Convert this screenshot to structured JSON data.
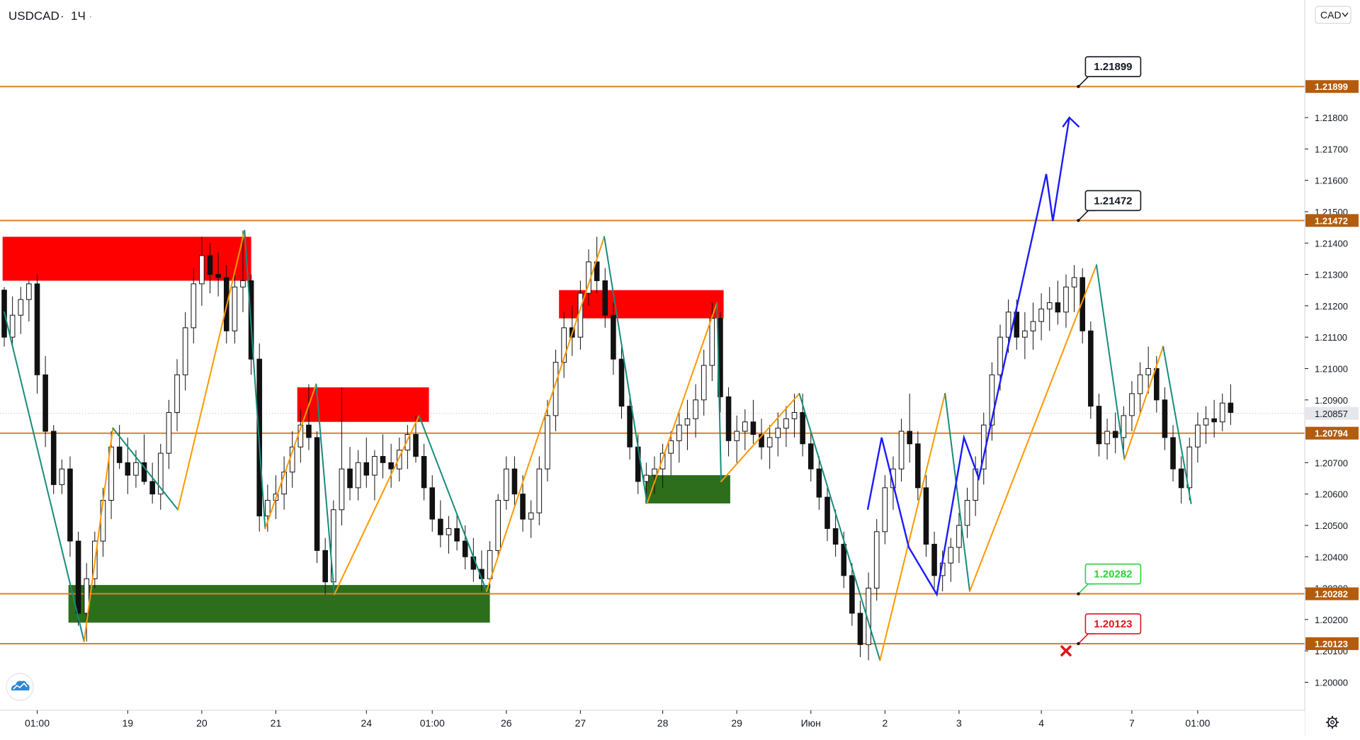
{
  "header": {
    "symbol": "USDCAD",
    "separator": "·",
    "timeframe": "1Ч",
    "trailing_dot": "·"
  },
  "currency_button": {
    "label": "CAD",
    "chevron_icon": "chevron-down-icon"
  },
  "icons": {
    "logo": "tradingview-cloud-icon",
    "settings": "gear-icon",
    "stop": "cross-icon"
  },
  "colors": {
    "level_line": "#d9822b",
    "level_tag": "#b35c0e",
    "last_price_tag": "#e6e7ec",
    "supply_zone": "#ff0000",
    "demand_zone": "#2d6e1c",
    "zigzag_up": "#ff9800",
    "zigzag_down": "#178c7c",
    "forecast_path": "#1a1aff",
    "candle": "#111111",
    "stop_callout": "#e0141e",
    "entry_callout": "#29d33b"
  },
  "chart_data": {
    "type": "candlestick",
    "symbol": "USDCAD",
    "interval": "1Ч",
    "y_axis": {
      "min": 1.1995,
      "max": 1.2215,
      "ticks": [
        "1.21800",
        "1.21700",
        "1.21600",
        "1.21500",
        "1.21400",
        "1.21300",
        "1.21200",
        "1.21100",
        "1.21000",
        "1.20900",
        "1.20700",
        "1.20600",
        "1.20500",
        "1.20400",
        "1.20300",
        "1.20200",
        "1.20100",
        "1.20000"
      ],
      "tick_values": [
        1.218,
        1.217,
        1.216,
        1.215,
        1.214,
        1.213,
        1.212,
        1.211,
        1.21,
        1.209,
        1.207,
        1.206,
        1.205,
        1.204,
        1.203,
        1.202,
        1.201,
        1.2
      ]
    },
    "x_axis": {
      "labels": [
        "01:00",
        "19",
        "20",
        "21",
        "24",
        "01:00",
        "26",
        "27",
        "28",
        "29",
        "Июн",
        "2",
        "3",
        "4",
        "7",
        "01:00"
      ],
      "label_index": [
        4,
        15,
        24,
        33,
        44,
        52,
        61,
        70,
        80,
        89,
        98,
        107,
        116,
        126,
        137,
        145
      ],
      "bar_count": 153
    },
    "last_price": "1.20857",
    "last_price_value": 1.20857,
    "levels": [
      {
        "value": 1.21899,
        "label": "1.21899"
      },
      {
        "value": 1.21472,
        "label": "1.21472"
      },
      {
        "value": 1.20794,
        "label": "1.20794"
      },
      {
        "value": 1.20282,
        "label": "1.20282"
      },
      {
        "value": 1.20123,
        "label": "1.20123"
      }
    ],
    "callouts": [
      {
        "label": "1.21899",
        "value": 1.21899,
        "bar": 130.5,
        "style": "dark"
      },
      {
        "label": "1.21472",
        "value": 1.21472,
        "bar": 130.5,
        "style": "dark"
      },
      {
        "label": "1.20282",
        "value": 1.20282,
        "bar": 130.5,
        "style": "green"
      },
      {
        "label": "1.20123",
        "value": 1.20123,
        "bar": 130.5,
        "style": "red"
      }
    ],
    "zones": [
      {
        "kind": "supply",
        "from_bar": -0.2,
        "to_bar": 30,
        "top": 1.2142,
        "bottom": 1.2128
      },
      {
        "kind": "supply",
        "from_bar": 35.6,
        "to_bar": 51.6,
        "top": 1.2094,
        "bottom": 1.2083
      },
      {
        "kind": "supply",
        "from_bar": 67.4,
        "to_bar": 87.4,
        "top": 1.2125,
        "bottom": 1.2116
      },
      {
        "kind": "demand",
        "from_bar": 7.8,
        "to_bar": 59,
        "top": 1.2031,
        "bottom": 1.2019
      },
      {
        "kind": "demand",
        "from_bar": 77.9,
        "to_bar": 88.2,
        "top": 1.2066,
        "bottom": 1.2057
      }
    ],
    "zigzag": [
      [
        0,
        1.2118
      ],
      [
        9.7,
        1.2013
      ],
      [
        13.2,
        1.2081
      ],
      [
        21.1,
        1.2055
      ],
      [
        29.2,
        1.2144
      ],
      [
        31.7,
        1.2049
      ],
      [
        37.9,
        1.2095
      ],
      [
        40.1,
        1.2028
      ],
      [
        50.4,
        1.2085
      ],
      [
        58.6,
        1.2029
      ],
      [
        72.9,
        1.2142
      ],
      [
        78.1,
        1.2057
      ],
      [
        86.6,
        1.2121
      ],
      [
        87.1,
        1.2064
      ],
      [
        96.6,
        1.2092
      ],
      [
        106.4,
        1.2007
      ],
      [
        114.3,
        1.2092
      ],
      [
        117.3,
        1.2029
      ],
      [
        132.7,
        1.2133
      ],
      [
        136.1,
        1.2071
      ],
      [
        140.8,
        1.2107
      ],
      [
        144.2,
        1.2057
      ]
    ],
    "forecast": [
      [
        104.9,
        1.2055
      ],
      [
        106.6,
        1.2078
      ],
      [
        109.9,
        1.2043
      ],
      [
        113.3,
        1.2028
      ],
      [
        116.6,
        1.2078
      ],
      [
        118.4,
        1.2065
      ],
      [
        126.6,
        1.2162
      ],
      [
        127.4,
        1.2147
      ],
      [
        129.4,
        1.218
      ]
    ],
    "forecast_head": [
      [
        128.6,
        1.2177
      ],
      [
        129.4,
        1.218
      ],
      [
        130.6,
        1.2177
      ]
    ],
    "stop_marker": {
      "bar": 129.0,
      "value": 1.201
    },
    "candles": [
      [
        1.2125,
        1.2126,
        1.2107,
        1.211
      ],
      [
        1.211,
        1.2123,
        1.2107,
        1.2117
      ],
      [
        1.2117,
        1.2126,
        1.2111,
        1.2122
      ],
      [
        1.2122,
        1.2128,
        1.2115,
        1.2127
      ],
      [
        1.2127,
        1.213,
        1.2092,
        1.2098
      ],
      [
        1.2098,
        1.2104,
        1.2075,
        1.208
      ],
      [
        1.208,
        1.2082,
        1.206,
        1.2063
      ],
      [
        1.2063,
        1.2071,
        1.206,
        1.2068
      ],
      [
        1.2068,
        1.2072,
        1.204,
        1.2045
      ],
      [
        1.2045,
        1.2048,
        1.2018,
        1.2022
      ],
      [
        1.2022,
        1.2038,
        1.2013,
        1.2033
      ],
      [
        1.2033,
        1.2048,
        1.203,
        1.2045
      ],
      [
        1.2045,
        1.2062,
        1.204,
        1.2058
      ],
      [
        1.2058,
        1.208,
        1.2052,
        1.2075
      ],
      [
        1.2075,
        1.2082,
        1.2068,
        1.207
      ],
      [
        1.207,
        1.2078,
        1.206,
        1.2066
      ],
      [
        1.2066,
        1.2074,
        1.2062,
        1.207
      ],
      [
        1.207,
        1.2079,
        1.2063,
        1.2064
      ],
      [
        1.2064,
        1.207,
        1.2057,
        1.206
      ],
      [
        1.206,
        1.2076,
        1.2055,
        1.2073
      ],
      [
        1.2073,
        1.209,
        1.2068,
        1.2086
      ],
      [
        1.2086,
        1.2103,
        1.208,
        1.2098
      ],
      [
        1.2098,
        1.2118,
        1.2093,
        1.2113
      ],
      [
        1.2113,
        1.2132,
        1.2108,
        1.2127
      ],
      [
        1.2127,
        1.2142,
        1.212,
        1.2136
      ],
      [
        1.2136,
        1.214,
        1.2124,
        1.213
      ],
      [
        1.213,
        1.2137,
        1.2123,
        1.2129
      ],
      [
        1.2129,
        1.2133,
        1.2108,
        1.2112
      ],
      [
        1.2112,
        1.213,
        1.2108,
        1.2126
      ],
      [
        1.2126,
        1.2144,
        1.2118,
        1.2128
      ],
      [
        1.2128,
        1.213,
        1.2098,
        1.2103
      ],
      [
        1.2103,
        1.2108,
        1.2048,
        1.2053
      ],
      [
        1.2053,
        1.2063,
        1.2048,
        1.2058
      ],
      [
        1.2058,
        1.2066,
        1.2052,
        1.206
      ],
      [
        1.206,
        1.2072,
        1.2055,
        1.2067
      ],
      [
        1.2067,
        1.208,
        1.2062,
        1.2075
      ],
      [
        1.2075,
        1.2087,
        1.207,
        1.2082
      ],
      [
        1.2082,
        1.2095,
        1.2074,
        1.2078
      ],
      [
        1.2078,
        1.208,
        1.2038,
        1.2042
      ],
      [
        1.2042,
        1.2046,
        1.2028,
        1.2032
      ],
      [
        1.2032,
        1.2058,
        1.203,
        1.2055
      ],
      [
        1.2055,
        1.2094,
        1.205,
        1.2068
      ],
      [
        1.2068,
        1.2075,
        1.2058,
        1.2062
      ],
      [
        1.2062,
        1.2074,
        1.2058,
        1.207
      ],
      [
        1.207,
        1.2078,
        1.2062,
        1.2066
      ],
      [
        1.2066,
        1.2074,
        1.2058,
        1.2072
      ],
      [
        1.2072,
        1.2079,
        1.2065,
        1.207
      ],
      [
        1.207,
        1.2076,
        1.2062,
        1.2068
      ],
      [
        1.2068,
        1.2078,
        1.2064,
        1.2074
      ],
      [
        1.2074,
        1.2082,
        1.2068,
        1.2079
      ],
      [
        1.2079,
        1.2085,
        1.207,
        1.2072
      ],
      [
        1.2072,
        1.2076,
        1.2058,
        1.2062
      ],
      [
        1.2062,
        1.2066,
        1.2048,
        1.2052
      ],
      [
        1.2052,
        1.2058,
        1.2043,
        1.2047
      ],
      [
        1.2047,
        1.2053,
        1.2041,
        1.2049
      ],
      [
        1.2049,
        1.2054,
        1.2042,
        1.2045
      ],
      [
        1.2045,
        1.205,
        1.2036,
        1.204
      ],
      [
        1.204,
        1.2046,
        1.2032,
        1.2036
      ],
      [
        1.2036,
        1.2042,
        1.2029,
        1.2033
      ],
      [
        1.2033,
        1.2045,
        1.203,
        1.2042
      ],
      [
        1.2042,
        1.206,
        1.204,
        1.2058
      ],
      [
        1.2058,
        1.2072,
        1.2055,
        1.2068
      ],
      [
        1.2068,
        1.2072,
        1.2056,
        1.206
      ],
      [
        1.206,
        1.2066,
        1.2048,
        1.2052
      ],
      [
        1.2052,
        1.2058,
        1.2046,
        1.2054
      ],
      [
        1.2054,
        1.2072,
        1.205,
        1.2068
      ],
      [
        1.2068,
        1.209,
        1.2064,
        1.2085
      ],
      [
        1.2085,
        1.2106,
        1.208,
        1.2102
      ],
      [
        1.2102,
        1.2118,
        1.2097,
        1.2113
      ],
      [
        1.2113,
        1.212,
        1.2104,
        1.211
      ],
      [
        1.211,
        1.2128,
        1.2106,
        1.2124
      ],
      [
        1.2124,
        1.2138,
        1.212,
        1.2134
      ],
      [
        1.2134,
        1.2142,
        1.2124,
        1.2128
      ],
      [
        1.2128,
        1.2132,
        1.2113,
        1.2117
      ],
      [
        1.2117,
        1.2121,
        1.2098,
        1.2103
      ],
      [
        1.2103,
        1.2107,
        1.2084,
        1.2088
      ],
      [
        1.2088,
        1.2092,
        1.2071,
        1.2075
      ],
      [
        1.2075,
        1.2079,
        1.206,
        1.2064
      ],
      [
        1.2064,
        1.207,
        1.2057,
        1.2066
      ],
      [
        1.2066,
        1.2072,
        1.206,
        1.2068
      ],
      [
        1.2068,
        1.2076,
        1.2062,
        1.2073
      ],
      [
        1.2073,
        1.208,
        1.2066,
        1.2077
      ],
      [
        1.2077,
        1.2086,
        1.207,
        1.2082
      ],
      [
        1.2082,
        1.209,
        1.2074,
        1.2084
      ],
      [
        1.2084,
        1.2095,
        1.2078,
        1.209
      ],
      [
        1.209,
        1.2106,
        1.2085,
        1.2101
      ],
      [
        1.2101,
        1.2121,
        1.2096,
        1.2116
      ],
      [
        1.2116,
        1.2118,
        1.2086,
        1.2091
      ],
      [
        1.2091,
        1.2094,
        1.2072,
        1.2077
      ],
      [
        1.2077,
        1.2085,
        1.207,
        1.208
      ],
      [
        1.208,
        1.2087,
        1.2074,
        1.2083
      ],
      [
        1.2083,
        1.209,
        1.2076,
        1.2079
      ],
      [
        1.2079,
        1.2084,
        1.2071,
        1.2075
      ],
      [
        1.2075,
        1.2082,
        1.2068,
        1.2078
      ],
      [
        1.2078,
        1.2086,
        1.2072,
        1.2081
      ],
      [
        1.2081,
        1.2088,
        1.2075,
        1.2084
      ],
      [
        1.2084,
        1.2092,
        1.2078,
        1.2086
      ],
      [
        1.2086,
        1.2092,
        1.2072,
        1.2076
      ],
      [
        1.2076,
        1.208,
        1.2064,
        1.2068
      ],
      [
        1.2068,
        1.2072,
        1.2055,
        1.2059
      ],
      [
        1.2059,
        1.2063,
        1.2045,
        1.2049
      ],
      [
        1.2049,
        1.2055,
        1.204,
        1.2044
      ],
      [
        1.2044,
        1.2048,
        1.203,
        1.2034
      ],
      [
        1.2034,
        1.2038,
        1.2018,
        1.2022
      ],
      [
        1.2022,
        1.2026,
        1.2008,
        1.2012
      ],
      [
        1.2012,
        1.2035,
        1.2007,
        1.203
      ],
      [
        1.203,
        1.2052,
        1.2026,
        1.2048
      ],
      [
        1.2048,
        1.2066,
        1.2044,
        1.2062
      ],
      [
        1.2062,
        1.2072,
        1.2055,
        1.2068
      ],
      [
        1.2068,
        1.2084,
        1.2064,
        1.208
      ],
      [
        1.208,
        1.2092,
        1.207,
        1.2076
      ],
      [
        1.2076,
        1.208,
        1.2058,
        1.2062
      ],
      [
        1.2062,
        1.2066,
        1.204,
        1.2044
      ],
      [
        1.2044,
        1.2048,
        1.203,
        1.2034
      ],
      [
        1.2034,
        1.2042,
        1.2029,
        1.2038
      ],
      [
        1.2038,
        1.2046,
        1.2032,
        1.2043
      ],
      [
        1.2043,
        1.2054,
        1.2038,
        1.205
      ],
      [
        1.205,
        1.2062,
        1.2046,
        1.2058
      ],
      [
        1.2058,
        1.2072,
        1.2053,
        1.2068
      ],
      [
        1.2068,
        1.2086,
        1.2063,
        1.2082
      ],
      [
        1.2082,
        1.2102,
        1.2077,
        1.2098
      ],
      [
        1.2098,
        1.2114,
        1.2093,
        1.211
      ],
      [
        1.211,
        1.2122,
        1.2105,
        1.2118
      ],
      [
        1.2118,
        1.2122,
        1.2106,
        1.211
      ],
      [
        1.211,
        1.2118,
        1.2103,
        1.2112
      ],
      [
        1.2112,
        1.2121,
        1.2106,
        1.2115
      ],
      [
        1.2115,
        1.2124,
        1.2109,
        1.2119
      ],
      [
        1.2119,
        1.2126,
        1.2112,
        1.2121
      ],
      [
        1.2121,
        1.2128,
        1.2114,
        1.2118
      ],
      [
        1.2118,
        1.213,
        1.2113,
        1.2126
      ],
      [
        1.2126,
        1.2133,
        1.2118,
        1.2129
      ],
      [
        1.2129,
        1.2132,
        1.2108,
        1.2112
      ],
      [
        1.2112,
        1.2115,
        1.2084,
        1.2088
      ],
      [
        1.2088,
        1.2092,
        1.2072,
        1.2076
      ],
      [
        1.2076,
        1.2084,
        1.2071,
        1.208
      ],
      [
        1.208,
        1.2086,
        1.2073,
        1.2078
      ],
      [
        1.2078,
        1.2088,
        1.2074,
        1.2085
      ],
      [
        1.2085,
        1.2096,
        1.208,
        1.2092
      ],
      [
        1.2092,
        1.2102,
        1.2086,
        1.2098
      ],
      [
        1.2098,
        1.2107,
        1.2092,
        1.21
      ],
      [
        1.21,
        1.2104,
        1.2086,
        1.209
      ],
      [
        1.209,
        1.2094,
        1.2074,
        1.2078
      ],
      [
        1.2078,
        1.2082,
        1.2064,
        1.2068
      ],
      [
        1.2068,
        1.2072,
        1.2057,
        1.2062
      ],
      [
        1.2062,
        1.2078,
        1.2058,
        1.2075
      ],
      [
        1.2075,
        1.2086,
        1.207,
        1.2082
      ],
      [
        1.2082,
        1.2088,
        1.2076,
        1.2084
      ],
      [
        1.2084,
        1.209,
        1.2078,
        1.2083
      ],
      [
        1.2083,
        1.2092,
        1.208,
        1.2089
      ],
      [
        1.2089,
        1.2095,
        1.2082,
        1.2086
      ]
    ]
  }
}
